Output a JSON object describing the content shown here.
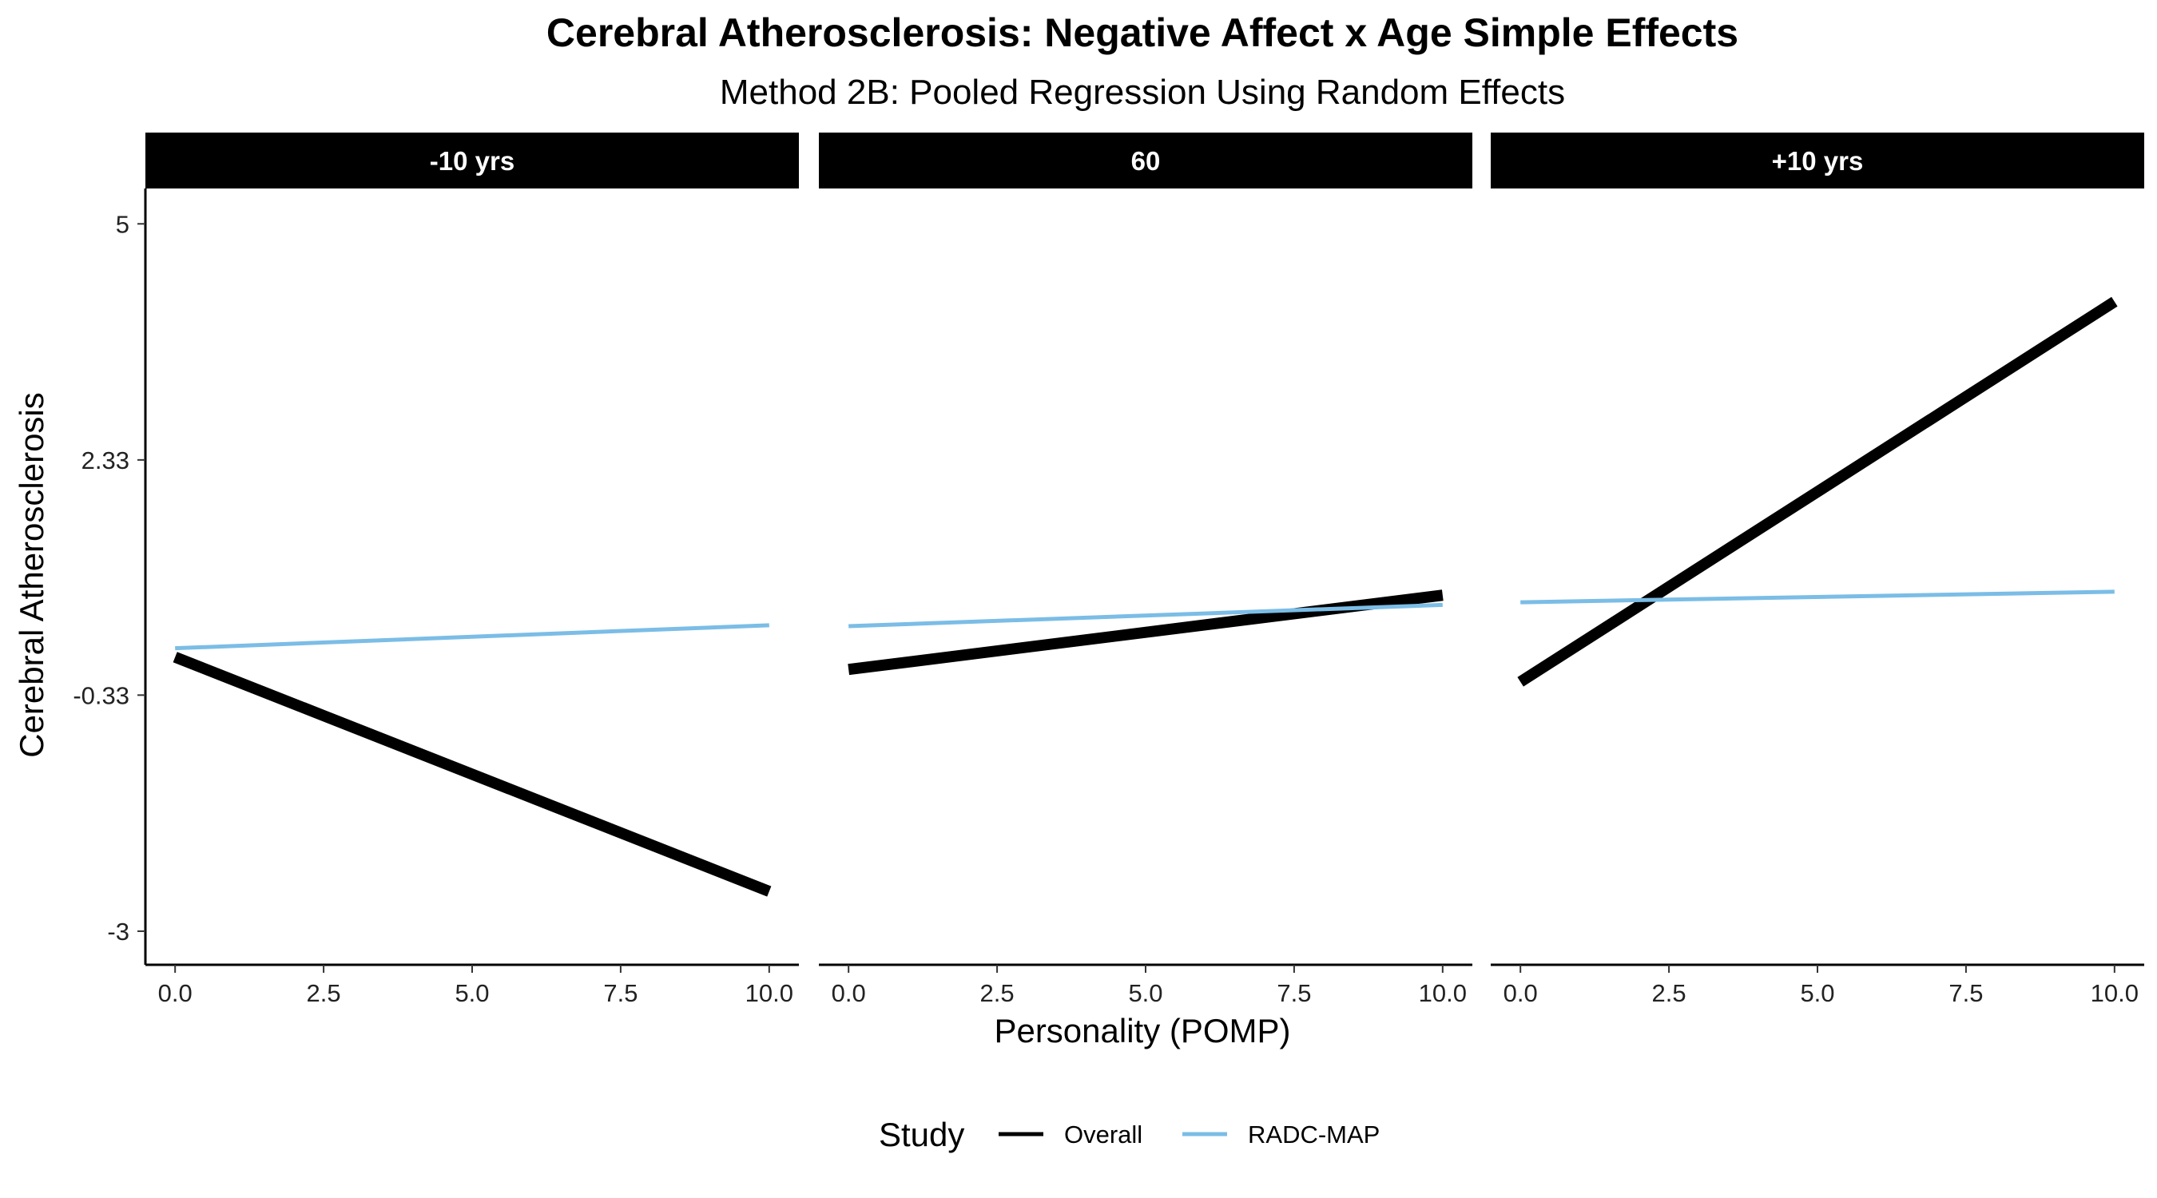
{
  "chart_data": {
    "type": "line",
    "title": "Cerebral Atherosclerosis: Negative Affect x Age Simple Effects",
    "subtitle": "Method 2B: Pooled Regression Using Random Effects",
    "xlabel": "Personality (POMP)",
    "ylabel": "Cerebral Atherosclerosis",
    "xlim": [
      -0.5,
      10.5
    ],
    "ylim": [
      -3.38,
      5.4
    ],
    "x_ticks": [
      0,
      2.5,
      5,
      7.5,
      10
    ],
    "x_tick_labels": [
      "0.0",
      "2.5",
      "5.0",
      "7.5",
      "10.0"
    ],
    "y_ticks": [
      -3,
      -0.33,
      2.33,
      5
    ],
    "y_tick_labels": [
      "-3",
      "-0.33",
      "2.33",
      "5"
    ],
    "grid": false,
    "legend": {
      "title": "Study",
      "position": "bottom",
      "entries": [
        {
          "label": "Overall",
          "color": "#000000"
        },
        {
          "label": "RADC-MAP",
          "color": "#7bbde6"
        }
      ]
    },
    "panels": [
      {
        "label": "-10 yrs",
        "series": [
          {
            "name": "Overall",
            "x": [
              0,
              10
            ],
            "y": [
              0.1,
              -2.55
            ]
          },
          {
            "name": "RADC-MAP",
            "x": [
              0,
              10
            ],
            "y": [
              0.2,
              0.46
            ]
          }
        ]
      },
      {
        "label": "60",
        "series": [
          {
            "name": "Overall",
            "x": [
              0,
              10
            ],
            "y": [
              -0.04,
              0.8
            ]
          },
          {
            "name": "RADC-MAP",
            "x": [
              0,
              10
            ],
            "y": [
              0.45,
              0.69
            ]
          }
        ]
      },
      {
        "label": "+10 yrs",
        "series": [
          {
            "name": "Overall",
            "x": [
              0,
              10
            ],
            "y": [
              -0.18,
              4.12
            ]
          },
          {
            "name": "RADC-MAP",
            "x": [
              0,
              10
            ],
            "y": [
              0.72,
              0.84
            ]
          }
        ]
      }
    ]
  }
}
